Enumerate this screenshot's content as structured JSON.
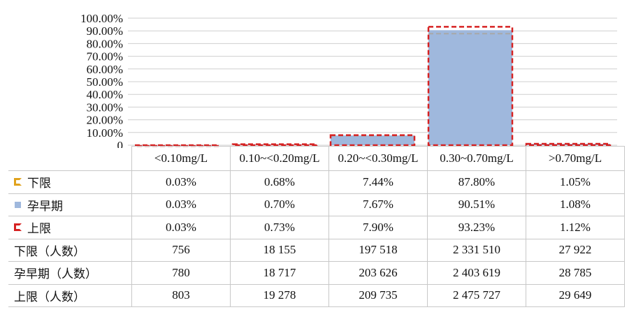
{
  "chart_data": {
    "type": "bar",
    "categories": [
      "<0.10mg/L",
      "0.10~<0.20mg/L",
      "0.20~<0.30mg/L",
      "0.30~0.70mg/L",
      ">0.70mg/L"
    ],
    "ylim": [
      0,
      100
    ],
    "y_ticks": [
      "0",
      "10.00%",
      "20.00%",
      "30.00%",
      "40.00%",
      "50.00%",
      "60.00%",
      "70.00%",
      "80.00%",
      "90.00%",
      "100.00%"
    ],
    "grid": true,
    "series": [
      {
        "name": "下限",
        "style": "dashed-line",
        "color": "#a8a8a8",
        "values": [
          0.03,
          0.68,
          7.44,
          87.8,
          1.05
        ],
        "labels": [
          "0.03%",
          "0.68%",
          "7.44%",
          "87.80%",
          "1.05%"
        ]
      },
      {
        "name": "孕早期",
        "style": "bar",
        "color": "#9fb8dd",
        "values": [
          0.03,
          0.7,
          7.67,
          90.51,
          1.08
        ],
        "labels": [
          "0.03%",
          "0.70%",
          "7.67%",
          "90.51%",
          "1.08%"
        ]
      },
      {
        "name": "上限",
        "style": "dashed-box",
        "color": "#d62222",
        "values": [
          0.03,
          0.73,
          7.9,
          93.23,
          1.12
        ],
        "labels": [
          "0.03%",
          "0.73%",
          "7.90%",
          "93.23%",
          "1.12%"
        ]
      }
    ],
    "count_rows": [
      {
        "name": "下限（人数）",
        "values": [
          "756",
          "18 155",
          "197 518",
          "2 331 510",
          "27 922"
        ]
      },
      {
        "name": "孕早期（人数）",
        "values": [
          "780",
          "18 717",
          "203 626",
          "2 403 619",
          "28 785"
        ]
      },
      {
        "name": "上限（人数）",
        "values": [
          "803",
          "19 278",
          "209 735",
          "2 475 727",
          "29 649"
        ]
      }
    ]
  }
}
